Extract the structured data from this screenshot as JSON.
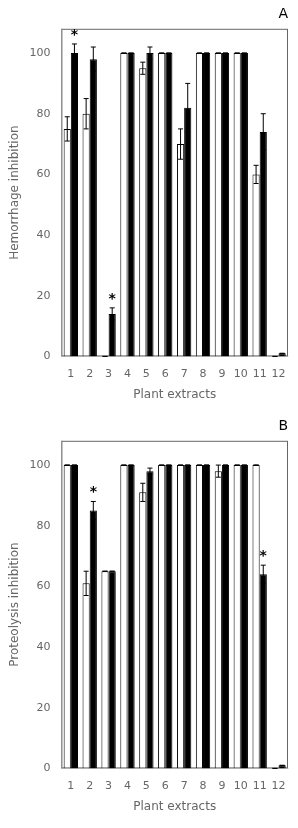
{
  "chart_data": [
    {
      "type": "bar",
      "title": "A",
      "xlabel": "Plant extracts",
      "ylabel": "Hemorrhage inhibition",
      "categories": [
        "1",
        "2",
        "3",
        "4",
        "5",
        "6",
        "7",
        "8",
        "9",
        "10",
        "11",
        "12"
      ],
      "series": [
        {
          "color": "#ffffff",
          "values": [
            75,
            80,
            0,
            100,
            95,
            100,
            70,
            100,
            100,
            100,
            60,
            0
          ],
          "errors": [
            4,
            5,
            0,
            0,
            2,
            0,
            5,
            0,
            0,
            0,
            3,
            0
          ]
        },
        {
          "color": "#000000",
          "values": [
            100,
            98,
            14,
            100,
            100,
            100,
            82,
            100,
            100,
            100,
            74,
            1
          ],
          "errors": [
            3,
            4,
            2,
            0,
            2,
            0,
            8,
            0,
            0,
            0,
            6,
            0
          ]
        }
      ],
      "annotations": [
        {
          "text": "*",
          "category": "1"
        },
        {
          "text": "*",
          "category": "3"
        }
      ],
      "ylim": [
        0,
        108
      ],
      "yticks": [
        0,
        20,
        40,
        60,
        80,
        100
      ],
      "grid": false
    },
    {
      "type": "bar",
      "title": "B",
      "xlabel": "Plant extracts",
      "ylabel": "Proteolysis inhibition",
      "categories": [
        "1",
        "2",
        "3",
        "4",
        "5",
        "6",
        "7",
        "8",
        "9",
        "10",
        "11",
        "12"
      ],
      "series": [
        {
          "color": "#ffffff",
          "values": [
            100,
            61,
            65,
            100,
            91,
            100,
            100,
            100,
            98,
            100,
            100,
            0
          ],
          "errors": [
            0,
            4,
            0,
            0,
            3,
            0,
            0,
            0,
            2,
            0,
            0,
            0
          ]
        },
        {
          "color": "#000000",
          "values": [
            100,
            85,
            65,
            100,
            98,
            100,
            100,
            100,
            100,
            100,
            64,
            1
          ],
          "errors": [
            0,
            3,
            0,
            0,
            1,
            0,
            0,
            0,
            0,
            0,
            3,
            0
          ]
        }
      ],
      "annotations": [
        {
          "text": "*",
          "category": "2"
        },
        {
          "text": "*",
          "category": "11"
        }
      ],
      "ylim": [
        0,
        108
      ],
      "yticks": [
        0,
        20,
        40,
        60,
        80,
        100
      ],
      "grid": false
    }
  ]
}
